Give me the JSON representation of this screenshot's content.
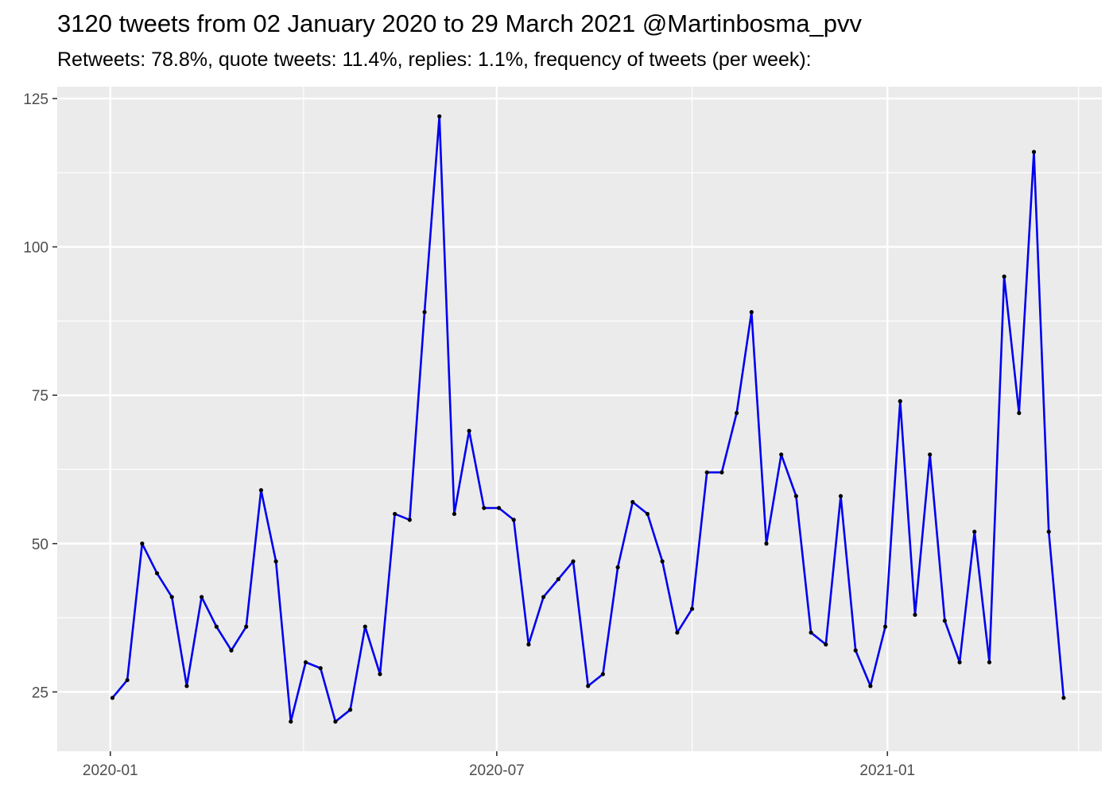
{
  "title": "3120 tweets from 02 January 2020 to 29 March 2021 @Martinbosma_pvv",
  "subtitle": "Retweets: 78.8%, quote tweets: 11.4%, replies: 1.1%, frequency of tweets (per week):",
  "chart_data": {
    "type": "line",
    "title": "3120 tweets from 02 January 2020 to 29 March 2021 @Martinbosma_pvv",
    "subtitle": "Retweets: 78.8%, quote tweets: 11.4%, replies: 1.1%, frequency of tweets (per week):",
    "xlabel": "",
    "ylabel": "",
    "x_type": "date",
    "xlim": [
      "2019-12-07",
      "2021-04-12"
    ],
    "ylim": [
      15,
      127
    ],
    "x_ticks": [
      {
        "value": "2020-01-01",
        "label": "2020-01"
      },
      {
        "value": "2020-07-01",
        "label": "2020-07"
      },
      {
        "value": "2021-01-01",
        "label": "2021-01"
      }
    ],
    "x_minor_breaks": [
      "2020-04-01",
      "2020-10-01",
      "2021-04-01"
    ],
    "y_ticks": [
      25,
      50,
      75,
      100,
      125
    ],
    "y_minor_breaks": [
      37.5,
      62.5,
      87.5,
      112.5
    ],
    "grid": true,
    "background": "#ebebeb",
    "line_color": "#0000ee",
    "point_color": "#000000",
    "series": [
      {
        "x": [
          "2020-01-02",
          "2020-01-09",
          "2020-01-16",
          "2020-01-23",
          "2020-01-30",
          "2020-02-06",
          "2020-02-13",
          "2020-02-20",
          "2020-02-27",
          "2020-03-05",
          "2020-03-12",
          "2020-03-19",
          "2020-03-26",
          "2020-04-02",
          "2020-04-09",
          "2020-04-16",
          "2020-04-23",
          "2020-04-30",
          "2020-05-07",
          "2020-05-14",
          "2020-05-21",
          "2020-05-28",
          "2020-06-04",
          "2020-06-11",
          "2020-06-18",
          "2020-06-25",
          "2020-07-02",
          "2020-07-09",
          "2020-07-16",
          "2020-07-23",
          "2020-07-30",
          "2020-08-06",
          "2020-08-13",
          "2020-08-20",
          "2020-08-27",
          "2020-09-03",
          "2020-09-10",
          "2020-09-17",
          "2020-09-24",
          "2020-10-01",
          "2020-10-08",
          "2020-10-15",
          "2020-10-22",
          "2020-10-29",
          "2020-11-05",
          "2020-11-12",
          "2020-11-19",
          "2020-11-26",
          "2020-12-03",
          "2020-12-10",
          "2020-12-17",
          "2020-12-24",
          "2020-12-31",
          "2021-01-07",
          "2021-01-14",
          "2021-01-21",
          "2021-01-28",
          "2021-02-04",
          "2021-02-11",
          "2021-02-18",
          "2021-02-25",
          "2021-03-04",
          "2021-03-11",
          "2021-03-18",
          "2021-03-25"
        ],
        "values": [
          24,
          27,
          50,
          45,
          41,
          26,
          41,
          36,
          32,
          36,
          59,
          47,
          20,
          30,
          29,
          20,
          22,
          36,
          28,
          55,
          54,
          89,
          122,
          55,
          69,
          56,
          56,
          54,
          33,
          41,
          44,
          47,
          26,
          28,
          46,
          57,
          55,
          47,
          35,
          39,
          62,
          62,
          72,
          89,
          50,
          65,
          58,
          35,
          33,
          58,
          32,
          26,
          36,
          74,
          38,
          65,
          37,
          30,
          52,
          30,
          95,
          72,
          116,
          52,
          24
        ]
      }
    ]
  }
}
